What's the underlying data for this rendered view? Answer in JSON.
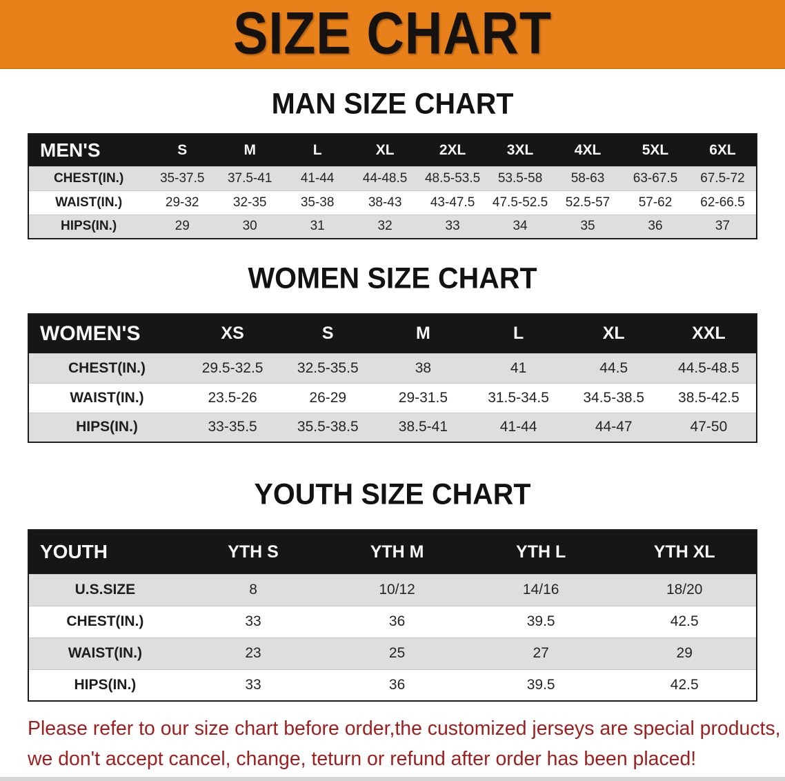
{
  "banner": {
    "title": "SIZE CHART"
  },
  "men": {
    "heading": "MAN SIZE CHART",
    "label": "MEN'S",
    "sizes": [
      "S",
      "M",
      "L",
      "XL",
      "2XL",
      "3XL",
      "4XL",
      "5XL",
      "6XL"
    ],
    "rows": [
      {
        "label": "CHEST(IN.)",
        "values": [
          "35-37.5",
          "37.5-41",
          "41-44",
          "44-48.5",
          "48.5-53.5",
          "53.5-58",
          "58-63",
          "63-67.5",
          "67.5-72"
        ]
      },
      {
        "label": "WAIST(IN.)",
        "values": [
          "29-32",
          "32-35",
          "35-38",
          "38-43",
          "43-47.5",
          "47.5-52.5",
          "52.5-57",
          "57-62",
          "62-66.5"
        ]
      },
      {
        "label": "HIPS(IN.)",
        "values": [
          "29",
          "30",
          "31",
          "32",
          "33",
          "34",
          "35",
          "36",
          "37"
        ]
      }
    ]
  },
  "women": {
    "heading": "WOMEN SIZE CHART",
    "label": "WOMEN'S",
    "sizes": [
      "XS",
      "S",
      "M",
      "L",
      "XL",
      "XXL"
    ],
    "rows": [
      {
        "label": "CHEST(IN.)",
        "values": [
          "29.5-32.5",
          "32.5-35.5",
          "38",
          "41",
          "44.5",
          "44.5-48.5"
        ]
      },
      {
        "label": "WAIST(IN.)",
        "values": [
          "23.5-26",
          "26-29",
          "29-31.5",
          "31.5-34.5",
          "34.5-38.5",
          "38.5-42.5"
        ]
      },
      {
        "label": "HIPS(IN.)",
        "values": [
          "33-35.5",
          "35.5-38.5",
          "38.5-41",
          "41-44",
          "44-47",
          "47-50"
        ]
      }
    ]
  },
  "youth": {
    "heading": "YOUTH SIZE CHART",
    "label": "YOUTH",
    "sizes": [
      "YTH S",
      "YTH M",
      "YTH L",
      "YTH XL"
    ],
    "rows": [
      {
        "label": "U.S.SIZE",
        "values": [
          "8",
          "10/12",
          "14/16",
          "18/20"
        ]
      },
      {
        "label": "CHEST(IN.)",
        "values": [
          "33",
          "36",
          "39.5",
          "42.5"
        ]
      },
      {
        "label": "WAIST(IN.)",
        "values": [
          "23",
          "25",
          "27",
          "29"
        ]
      },
      {
        "label": "HIPS(IN.)",
        "values": [
          "33",
          "36",
          "39.5",
          "42.5"
        ]
      }
    ]
  },
  "note": {
    "line1": "Please refer to our size chart before order,the customized jerseys are special products,",
    "line2": "we don't accept cancel, change, teturn or refund after order has been placed!"
  },
  "colors": {
    "banner_bg": "#E8811A",
    "header_bar_bg": "#161616",
    "header_bar_text": "#F7F7F7",
    "alt_row_bg": "#DEDEDE",
    "note_text": "#9E1E1E",
    "heading_text": "#121212"
  }
}
